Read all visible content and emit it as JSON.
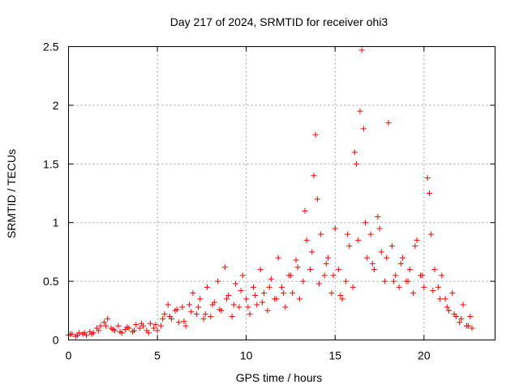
{
  "chart_data": {
    "type": "scatter",
    "title": "Day 217 of 2024, SRMTID for receiver ohi3",
    "xlabel": "GPS time / hours",
    "ylabel": "SRMTID / TECUs",
    "xlim": [
      0,
      24
    ],
    "ylim": [
      0,
      2.5
    ],
    "xticks": [
      0,
      5,
      10,
      15,
      20
    ],
    "xtick_labels": [
      "0",
      "5",
      "10",
      "15",
      "20"
    ],
    "yticks": [
      0,
      0.5,
      1,
      1.5,
      2,
      2.5
    ],
    "ytick_labels": [
      "0",
      "0.5",
      "1",
      "1.5",
      "2",
      "2.5"
    ],
    "grid": true,
    "marker": "plus",
    "series": [
      {
        "name": "SRMTID",
        "color": "#ff0000",
        "x": [
          0.0,
          0.2,
          0.4,
          0.6,
          0.8,
          1.0,
          1.2,
          1.4,
          1.6,
          1.8,
          2.0,
          2.2,
          2.4,
          2.6,
          2.8,
          3.0,
          3.2,
          3.4,
          3.6,
          3.8,
          4.0,
          4.2,
          4.4,
          4.6,
          4.8,
          5.0,
          5.2,
          5.4,
          5.6,
          5.8,
          6.0,
          6.2,
          6.4,
          6.6,
          6.8,
          7.0,
          7.2,
          7.4,
          7.6,
          7.8,
          8.0,
          8.2,
          8.4,
          8.6,
          8.8,
          9.0,
          9.2,
          9.4,
          9.6,
          9.8,
          10.0,
          10.2,
          10.4,
          10.6,
          10.8,
          11.0,
          11.2,
          11.4,
          11.6,
          11.8,
          12.0,
          12.2,
          12.4,
          12.6,
          12.8,
          13.0,
          13.2,
          13.4,
          13.6,
          13.8,
          13.9,
          14.0,
          14.2,
          14.4,
          14.6,
          14.8,
          15.0,
          15.2,
          15.4,
          15.6,
          15.8,
          16.0,
          16.2,
          16.4,
          16.5,
          16.6,
          16.8,
          17.0,
          17.2,
          17.4,
          17.6,
          17.8,
          18.0,
          18.2,
          18.4,
          18.6,
          18.8,
          19.0,
          19.2,
          19.4,
          19.6,
          19.8,
          20.0,
          20.2,
          20.3,
          20.4,
          20.6,
          20.8,
          21.0,
          21.2,
          21.4,
          21.6,
          21.8,
          22.0,
          22.2,
          22.4,
          22.6,
          22.7,
          0.1,
          0.5,
          0.9,
          1.3,
          1.7,
          2.1,
          2.5,
          2.9,
          3.3,
          3.7,
          4.1,
          4.5,
          4.9,
          5.3,
          5.7,
          6.1,
          6.5,
          6.9,
          7.3,
          7.7,
          8.1,
          8.5,
          8.9,
          9.3,
          9.7,
          10.1,
          10.5,
          10.9,
          11.3,
          11.7,
          12.1,
          12.5,
          12.9,
          13.3,
          13.7,
          14.1,
          14.5,
          14.9,
          15.3,
          15.7,
          16.1,
          16.3,
          16.7,
          17.1,
          17.5,
          17.9,
          18.3,
          18.7,
          19.1,
          19.5,
          19.9,
          20.5,
          20.9,
          21.3,
          21.7,
          22.1,
          22.5
        ],
        "y": [
          0.04,
          0.05,
          0.03,
          0.06,
          0.05,
          0.04,
          0.07,
          0.06,
          0.1,
          0.12,
          0.15,
          0.18,
          0.1,
          0.08,
          0.12,
          0.06,
          0.09,
          0.1,
          0.07,
          0.13,
          0.1,
          0.12,
          0.08,
          0.14,
          0.1,
          0.08,
          0.12,
          0.22,
          0.3,
          0.18,
          0.25,
          0.15,
          0.28,
          0.12,
          0.3,
          0.4,
          0.22,
          0.35,
          0.18,
          0.45,
          0.2,
          0.32,
          0.5,
          0.25,
          0.62,
          0.38,
          0.2,
          0.48,
          0.28,
          0.55,
          0.35,
          0.22,
          0.45,
          0.3,
          0.6,
          0.4,
          0.25,
          0.52,
          0.35,
          0.7,
          0.45,
          0.28,
          0.55,
          0.4,
          0.68,
          0.35,
          0.5,
          0.85,
          0.6,
          1.4,
          1.75,
          1.2,
          0.9,
          0.55,
          0.7,
          0.4,
          0.95,
          0.6,
          0.35,
          0.5,
          0.8,
          0.45,
          1.5,
          1.95,
          2.47,
          1.8,
          0.7,
          0.9,
          0.6,
          1.05,
          0.75,
          0.5,
          1.85,
          0.8,
          0.55,
          0.45,
          0.7,
          0.5,
          0.6,
          0.4,
          0.85,
          0.55,
          0.45,
          1.38,
          1.25,
          0.9,
          0.6,
          0.45,
          0.55,
          0.35,
          0.25,
          0.4,
          0.2,
          0.15,
          0.3,
          0.12,
          0.2,
          0.1,
          0.05,
          0.04,
          0.06,
          0.05,
          0.08,
          0.12,
          0.09,
          0.07,
          0.11,
          0.08,
          0.14,
          0.06,
          0.13,
          0.18,
          0.2,
          0.26,
          0.16,
          0.24,
          0.28,
          0.22,
          0.3,
          0.26,
          0.35,
          0.3,
          0.42,
          0.28,
          0.38,
          0.32,
          0.45,
          0.35,
          0.4,
          0.55,
          0.62,
          1.1,
          0.75,
          0.48,
          0.65,
          0.55,
          0.38,
          0.9,
          1.6,
          0.85,
          1.0,
          0.65,
          0.95,
          0.7,
          0.5,
          0.65,
          0.5,
          0.8,
          0.55,
          0.42,
          0.35,
          0.28,
          0.22,
          0.18,
          0.12
        ]
      }
    ]
  }
}
